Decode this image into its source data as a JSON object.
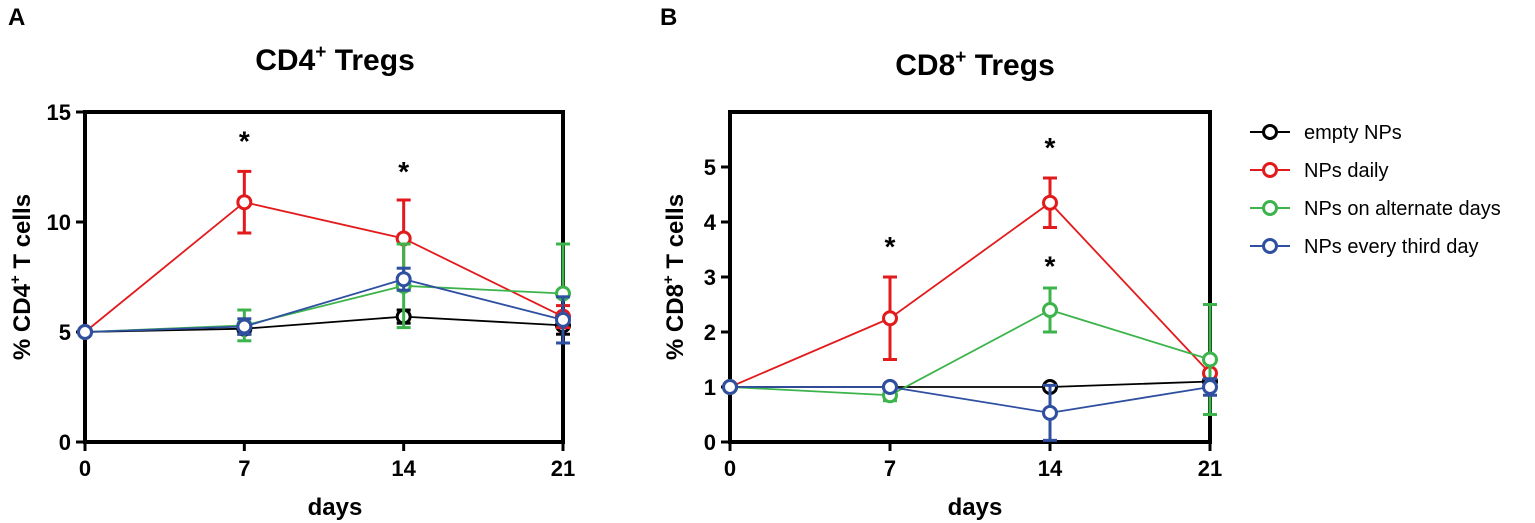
{
  "colors": {
    "empty": "#000000",
    "daily": "#e31a1c",
    "alternate": "#3cb44b",
    "third": "#2f4fa0"
  },
  "legend": {
    "items": [
      {
        "label": "empty NPs",
        "color": "#000000"
      },
      {
        "label": "NPs daily",
        "color": "#e31a1c"
      },
      {
        "label": "NPs on alternate days",
        "color": "#3cb44b"
      },
      {
        "label": "NPs every third day",
        "color": "#2f4fa0"
      }
    ]
  },
  "chart_data": [
    {
      "panel_label": "A",
      "type": "line",
      "title": "CD4",
      "title_sup": "+",
      "title_rest": " Tregs",
      "xlabel": "days",
      "ylabel_pre": "% CD4",
      "ylabel_sup": "+",
      "ylabel_post": " T cells",
      "x": [
        0,
        7,
        14,
        21
      ],
      "xticks": [
        "0",
        "7",
        "14",
        "21"
      ],
      "xlim": [
        0,
        21
      ],
      "ylim": [
        0,
        15
      ],
      "yticks": [
        "0",
        "5",
        "10",
        "15"
      ],
      "series": [
        {
          "name": "empty NPs",
          "color": "#000000",
          "values": [
            5.0,
            5.15,
            5.7,
            5.3
          ],
          "errors": [
            0.1,
            0.25,
            0.3,
            0.4
          ]
        },
        {
          "name": "NPs daily",
          "color": "#e31a1c",
          "values": [
            5.0,
            10.9,
            9.25,
            5.7
          ],
          "errors": [
            0.1,
            1.4,
            1.75,
            0.5
          ]
        },
        {
          "name": "NPs on alternate days",
          "color": "#3cb44b",
          "values": [
            5.0,
            5.3,
            7.1,
            6.75
          ],
          "errors": [
            0.1,
            0.7,
            1.9,
            2.25
          ]
        },
        {
          "name": "NPs every third day",
          "color": "#2f4fa0",
          "values": [
            5.0,
            5.25,
            7.4,
            5.55
          ],
          "errors": [
            0.1,
            0.35,
            0.5,
            1.05
          ]
        }
      ],
      "annotations": [
        {
          "text": "*",
          "x": 7,
          "y": 13.8
        },
        {
          "text": "*",
          "x": 14,
          "y": 12.4
        }
      ]
    },
    {
      "panel_label": "B",
      "type": "line",
      "title": "CD8",
      "title_sup": "+",
      "title_rest": " Tregs",
      "xlabel": "days",
      "ylabel_pre": "% CD8",
      "ylabel_sup": "+",
      "ylabel_post": " T cells",
      "x": [
        0,
        7,
        14,
        21
      ],
      "xticks": [
        "0",
        "7",
        "14",
        "21"
      ],
      "xlim": [
        0,
        21
      ],
      "ylim": [
        0,
        6
      ],
      "yticks": [
        "0",
        "1",
        "2",
        "3",
        "4",
        "5"
      ],
      "series": [
        {
          "name": "empty NPs",
          "color": "#000000",
          "values": [
            1.0,
            1.0,
            1.0,
            1.1
          ],
          "errors": [
            0.03,
            0.05,
            0.05,
            0.1
          ]
        },
        {
          "name": "NPs daily",
          "color": "#e31a1c",
          "values": [
            1.0,
            2.25,
            4.35,
            1.25
          ],
          "errors": [
            0.03,
            0.75,
            0.45,
            0.2
          ]
        },
        {
          "name": "NPs on alternate days",
          "color": "#3cb44b",
          "values": [
            1.0,
            0.85,
            2.4,
            1.5
          ],
          "errors": [
            0.03,
            0.1,
            0.4,
            1.0
          ]
        },
        {
          "name": "NPs every third day",
          "color": "#2f4fa0",
          "values": [
            1.0,
            1.0,
            0.53,
            1.0
          ],
          "errors": [
            0.03,
            0.05,
            0.5,
            0.15
          ]
        }
      ],
      "annotations": [
        {
          "text": "*",
          "x": 7,
          "y": 3.6
        },
        {
          "text": "*",
          "x": 14,
          "y": 5.4
        },
        {
          "text": "*",
          "x": 14,
          "y": 3.25
        }
      ]
    }
  ]
}
